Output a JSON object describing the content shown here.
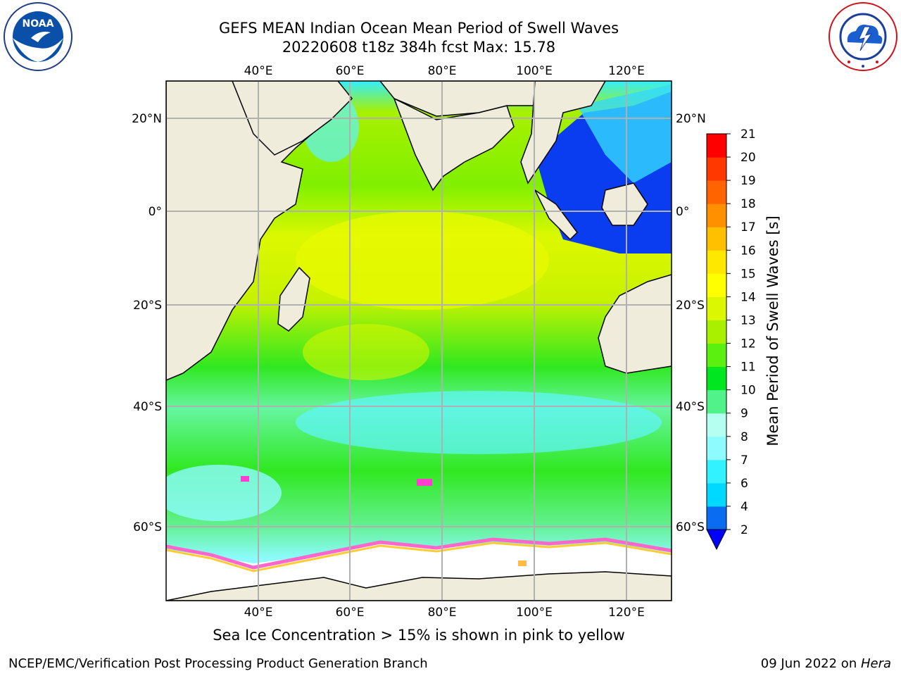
{
  "header": {
    "title_line1": "GEFS MEAN Indian Ocean Mean Period of Swell Waves",
    "title_line2": "20220608 t18z 384h fcst   Max: 15.78"
  },
  "logos": {
    "left": {
      "icon": "noaa-logo",
      "text": "NOAA"
    },
    "right": {
      "icon": "nws-logo"
    }
  },
  "map": {
    "top_lon_labels": [
      "40°E",
      "60°E",
      "80°E",
      "100°E",
      "120°E"
    ],
    "bottom_lon_labels": [
      "40°E",
      "60°E",
      "80°E",
      "100°E",
      "120°E"
    ],
    "left_lat_labels": [
      "20°N",
      "0°",
      "20°S",
      "40°S",
      "60°S"
    ],
    "right_lat_labels": [
      "20°N",
      "0°",
      "20°S",
      "40°S",
      "60°S"
    ],
    "land_color": "#efecdc",
    "ice_color": "#ffffff"
  },
  "colorbar": {
    "label": "Mean Period of Swell Waves [s]",
    "ticks": [
      "2",
      "4",
      "6",
      "7",
      "8",
      "9",
      "10",
      "11",
      "12",
      "13",
      "14",
      "15",
      "16",
      "17",
      "18",
      "19",
      "20",
      "21"
    ],
    "colors": [
      "#0a6cf0",
      "#00d9ff",
      "#33f2ff",
      "#8dfbff",
      "#b4fff0",
      "#52f28a",
      "#00e620",
      "#5cf010",
      "#a8f000",
      "#dcf800",
      "#ffff00",
      "#ffe800",
      "#ffc000",
      "#ff9000",
      "#ff6400",
      "#ff3800",
      "#ff0000"
    ],
    "under_color": "#0000ff"
  },
  "note": "Sea Ice Concentration > 15% is shown in pink to yellow",
  "footer": {
    "left": "NCEP/EMC/Verification Post Processing Product Generation Branch",
    "right_date": "09 Jun 2022 on ",
    "right_host": "Hera"
  }
}
